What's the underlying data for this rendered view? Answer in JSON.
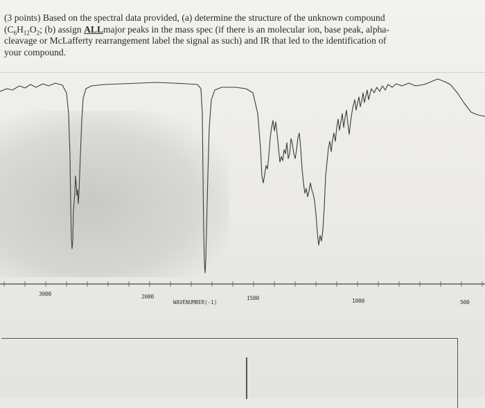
{
  "question": {
    "points": "(3 points)",
    "text_a": "Based on the spectral data provided, (a) determine the structure of the unknown compound",
    "formula_prefix": "(C",
    "formula_c_sub": "6",
    "formula_h": "H",
    "formula_h_sub": "12",
    "formula_o": "O",
    "formula_o_sub": "2",
    "formula_suffix": ";",
    "text_b1": "(b) assign",
    "all": "ALL",
    "text_b2": "major peaks in the mass spec (if there is an molecular ion, base peak, alpha-",
    "line3": "cleavage or McLafferty rearrangement label the signal as such) and IR that led to the identification of",
    "line4": "your compound."
  },
  "spectrum": {
    "ticks": [
      "3000",
      "2000",
      "1500",
      "1000",
      "500"
    ],
    "axis_title": "WAVENUMBER(-1)"
  },
  "chart_data": {
    "type": "line",
    "title": "",
    "xlabel": "WAVENUMBER(-1)",
    "ylabel": "",
    "x_ticks": [
      3000,
      2000,
      1500,
      1000,
      500
    ],
    "x": [
      3600,
      3400,
      3200,
      3050,
      3000,
      2980,
      2960,
      2930,
      2900,
      2870,
      2800,
      2600,
      2400,
      2200,
      2000,
      1900,
      1800,
      1760,
      1740,
      1720,
      1700,
      1650,
      1600,
      1500,
      1470,
      1450,
      1420,
      1380,
      1350,
      1300,
      1250,
      1200,
      1170,
      1150,
      1120,
      1100,
      1060,
      1000,
      900,
      800,
      700,
      600,
      500
    ],
    "series": [
      {
        "values": [
          92,
          93,
          94,
          93,
          60,
          20,
          40,
          15,
          30,
          45,
          92,
          96,
          96,
          96,
          96,
          96,
          94,
          70,
          10,
          5,
          40,
          92,
          93,
          88,
          60,
          70,
          65,
          55,
          58,
          52,
          68,
          45,
          25,
          30,
          22,
          40,
          75,
          85,
          88,
          90,
          91,
          93,
          88
        ]
      }
    ]
  }
}
